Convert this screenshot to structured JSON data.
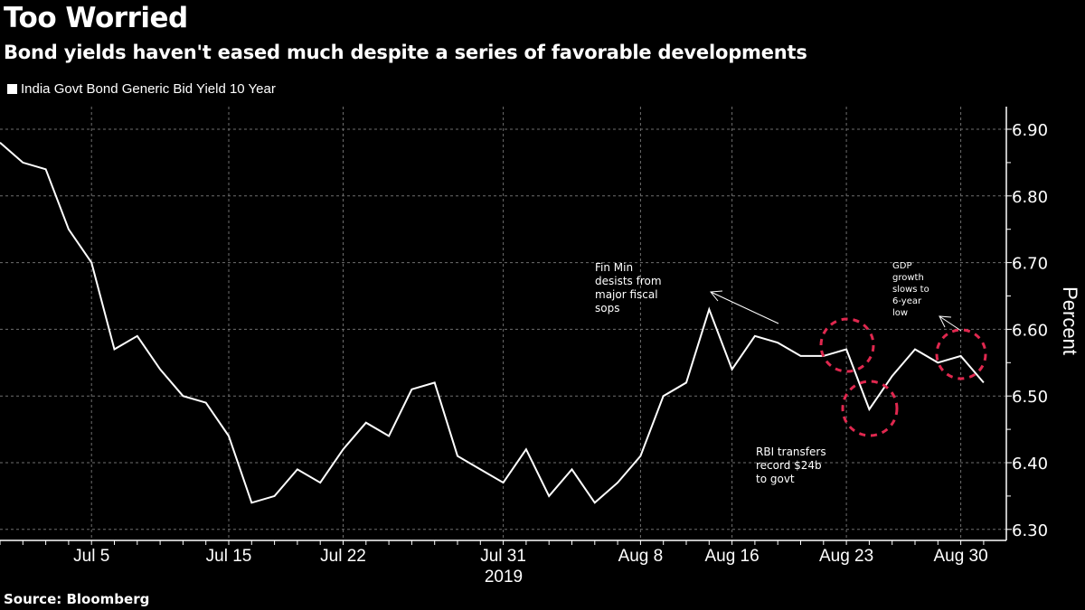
{
  "header": {
    "title": "Too Worried",
    "subtitle": "Bond yields haven't eased much despite a series of favorable developments"
  },
  "legend": {
    "label": "India Govt Bond Generic Bid Yield 10 Year"
  },
  "footer": {
    "source": "Source: Bloomberg"
  },
  "colors": {
    "background": "#000000",
    "line": "#ffffff",
    "grid": "#6e6e6e",
    "circle": "#e0284f"
  },
  "chart_data": {
    "type": "line",
    "title": "Too Worried",
    "subtitle": "Bond yields haven't eased much despite a series of favorable developments",
    "xlabel": "2019",
    "ylabel": "Percent",
    "ylim": [
      6.28,
      6.92
    ],
    "yticks": [
      6.9,
      6.8,
      6.7,
      6.6,
      6.5,
      6.4,
      6.3
    ],
    "ytick_labels": [
      "6.90",
      "6.80",
      "6.70",
      "6.60",
      "6.50",
      "6.40",
      "6.30"
    ],
    "grid": true,
    "legend_position": "top-left",
    "xticks": [
      {
        "label": "Jul 5",
        "index": 4
      },
      {
        "label": "Jul 15",
        "index": 10
      },
      {
        "label": "Jul 22",
        "index": 15
      },
      {
        "label": "Jul 31",
        "index": 22
      },
      {
        "label": "Aug 8",
        "index": 28
      },
      {
        "label": "Aug 16",
        "index": 32
      },
      {
        "label": "Aug 23",
        "index": 37
      },
      {
        "label": "Aug 30",
        "index": 42
      }
    ],
    "year_label": "2019",
    "series": [
      {
        "name": "India Govt Bond Generic Bid Yield 10 Year",
        "values": [
          6.88,
          6.85,
          6.84,
          6.75,
          6.7,
          6.57,
          6.59,
          6.54,
          6.5,
          6.49,
          6.44,
          6.34,
          6.35,
          6.39,
          6.37,
          6.42,
          6.46,
          6.44,
          6.51,
          6.52,
          6.41,
          6.39,
          6.37,
          6.42,
          6.35,
          6.39,
          6.34,
          6.37,
          6.41,
          6.5,
          6.52,
          6.63,
          6.54,
          6.59,
          6.58,
          6.56,
          6.56,
          6.57,
          6.48,
          6.53,
          6.57,
          6.55,
          6.56,
          6.52
        ]
      }
    ],
    "annotations": [
      {
        "text": [
          "Fin Min",
          "desists from",
          "major fiscal",
          "sops"
        ],
        "index": 31
      },
      {
        "text": [
          "RBI transfers",
          "record $24b",
          "to govt"
        ],
        "index": 38
      },
      {
        "text": [
          "GDP",
          "growth",
          "slows to",
          "6-year",
          "low"
        ],
        "index": 42
      }
    ],
    "highlight_circles": [
      37,
      38,
      42
    ]
  }
}
